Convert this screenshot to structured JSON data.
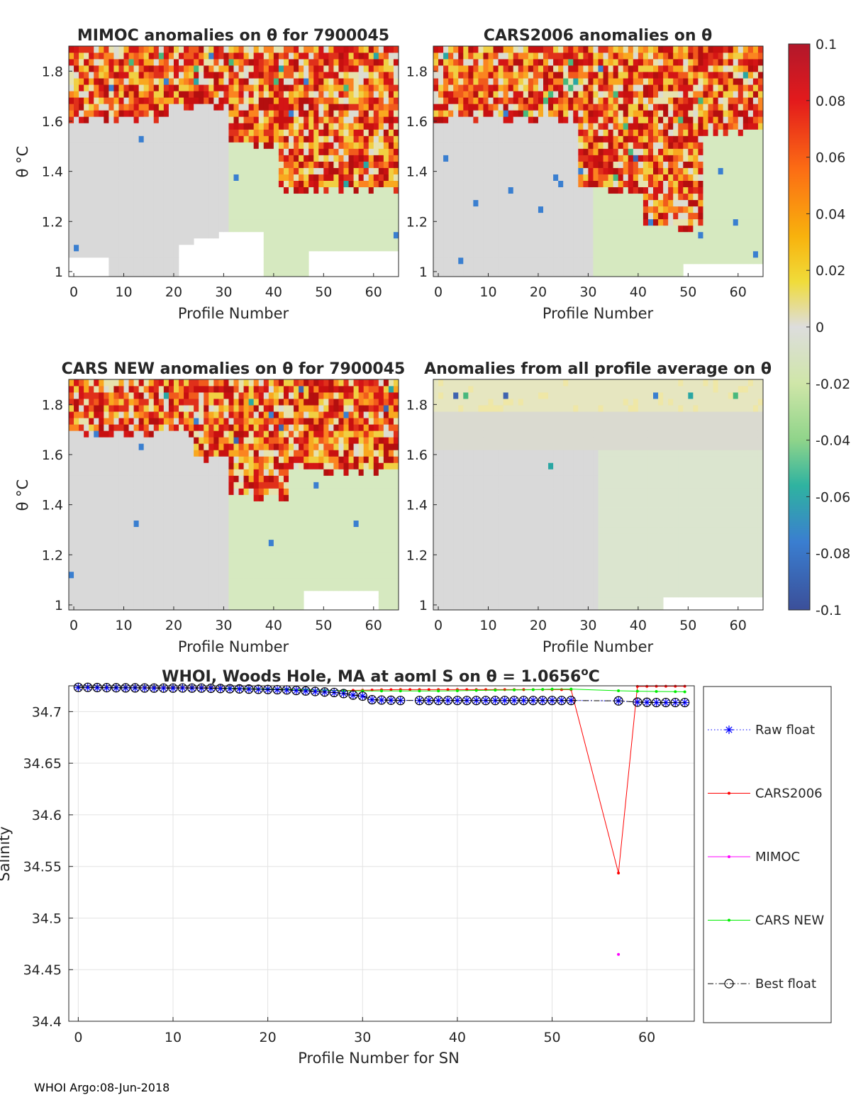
{
  "footer": "WHOI Argo:08-Jun-2018",
  "heatmaps": {
    "y_label": "θ °C",
    "x_label": "Profile Number",
    "panels": [
      {
        "title": "MIMOC anomalies on θ  for 7900045",
        "pattern": "mimoc"
      },
      {
        "title": "CARS2006 anomalies on θ",
        "pattern": "cars2006"
      },
      {
        "title": "CARS NEW anomalies on θ for 7900045",
        "pattern": "carsnew"
      },
      {
        "title": "Anomalies from all profile average on θ",
        "pattern": "average"
      }
    ]
  },
  "colorbar": {
    "range": [
      -0.1,
      0.1
    ],
    "tick_labels": [
      "0.1",
      "0.08",
      "0.06",
      "0.04",
      "0.02",
      "0",
      "-0.02",
      "-0.04",
      "-0.06",
      "-0.08",
      "-0.1"
    ],
    "tick_values": [
      0.1,
      0.08,
      0.06,
      0.04,
      0.02,
      0,
      -0.02,
      -0.04,
      -0.06,
      -0.08,
      -0.1
    ]
  },
  "chart_data": [
    {
      "type": "heatmap",
      "title": "MIMOC anomalies on θ  for 7900045",
      "xlabel": "Profile Number",
      "ylabel": "θ °C",
      "xlim": [
        -1,
        65
      ],
      "ylim": [
        0.98,
        1.9
      ],
      "xticks": [
        0,
        10,
        20,
        30,
        40,
        50,
        60
      ],
      "xtick_labels": [
        "0",
        "10",
        "20",
        "30",
        "40",
        "50",
        "60"
      ],
      "yticks": [
        1,
        1.2,
        1.4,
        1.6,
        1.8
      ],
      "ytick_labels": [
        "1",
        "1.2",
        "1.4",
        "1.6",
        "1.8"
      ],
      "color_range": [
        -0.1,
        0.1
      ]
    },
    {
      "type": "heatmap",
      "title": "CARS2006 anomalies on θ",
      "xlabel": "Profile Number",
      "ylabel": "θ °C",
      "xlim": [
        -1,
        65
      ],
      "ylim": [
        0.98,
        1.9
      ],
      "xticks": [
        0,
        10,
        20,
        30,
        40,
        50,
        60
      ],
      "xtick_labels": [
        "0",
        "10",
        "20",
        "30",
        "40",
        "50",
        "60"
      ],
      "yticks": [
        1,
        1.2,
        1.4,
        1.6,
        1.8
      ],
      "ytick_labels": [
        "1",
        "1.2",
        "1.4",
        "1.6",
        "1.8"
      ],
      "color_range": [
        -0.1,
        0.1
      ]
    },
    {
      "type": "heatmap",
      "title": "CARS NEW anomalies on θ for 7900045",
      "xlabel": "Profile Number",
      "ylabel": "θ °C",
      "xlim": [
        -1,
        65
      ],
      "ylim": [
        0.98,
        1.9
      ],
      "xticks": [
        0,
        10,
        20,
        30,
        40,
        50,
        60
      ],
      "xtick_labels": [
        "0",
        "10",
        "20",
        "30",
        "40",
        "50",
        "60"
      ],
      "yticks": [
        1,
        1.2,
        1.4,
        1.6,
        1.8
      ],
      "ytick_labels": [
        "1",
        "1.2",
        "1.4",
        "1.6",
        "1.8"
      ],
      "color_range": [
        -0.1,
        0.1
      ]
    },
    {
      "type": "heatmap",
      "title": "Anomalies from all profile average on θ",
      "xlabel": "Profile Number",
      "ylabel": "θ °C",
      "xlim": [
        -1,
        65
      ],
      "ylim": [
        0.98,
        1.9
      ],
      "xticks": [
        0,
        10,
        20,
        30,
        40,
        50,
        60
      ],
      "xtick_labels": [
        "0",
        "10",
        "20",
        "30",
        "40",
        "50",
        "60"
      ],
      "yticks": [
        1,
        1.2,
        1.4,
        1.6,
        1.8
      ],
      "ytick_labels": [
        "1",
        "1.2",
        "1.4",
        "1.6",
        "1.8"
      ],
      "color_range": [
        -0.1,
        0.1
      ]
    },
    {
      "type": "line",
      "title_prefix": "WHOI, Woods Hole, MA at aoml S on θ = 1.0656",
      "title_degree": "o",
      "title_suffix": "C",
      "xlabel": "Profile Number for SN",
      "ylabel": "Salinity",
      "xlim": [
        -1,
        65
      ],
      "ylim": [
        34.4,
        34.725
      ],
      "xticks": [
        0,
        10,
        20,
        30,
        40,
        50,
        60
      ],
      "xtick_labels": [
        "0",
        "10",
        "20",
        "30",
        "40",
        "50",
        "60"
      ],
      "yticks": [
        34.4,
        34.45,
        34.5,
        34.55,
        34.6,
        34.65,
        34.7
      ],
      "ytick_labels": [
        "34.4",
        "34.45",
        "34.5",
        "34.55",
        "34.6",
        "34.65",
        "34.7"
      ],
      "grid": true,
      "legend_position": "right",
      "series": [
        {
          "name": "Raw float",
          "color": "#0000ff",
          "marker": "star",
          "line": "dotted",
          "x": [
            0,
            1,
            2,
            3,
            4,
            5,
            6,
            7,
            8,
            9,
            10,
            11,
            12,
            13,
            14,
            15,
            16,
            17,
            18,
            19,
            20,
            21,
            22,
            23,
            24,
            25,
            26,
            27,
            28,
            29,
            30,
            31,
            32,
            33,
            34,
            36,
            37,
            38,
            39,
            40,
            41,
            42,
            43,
            44,
            45,
            46,
            47,
            48,
            49,
            50,
            51,
            52,
            57,
            59,
            60,
            61,
            62,
            63,
            64
          ],
          "y": [
            34.7235,
            34.7235,
            34.7233,
            34.7232,
            34.7231,
            34.723,
            34.723,
            34.7229,
            34.7228,
            34.7228,
            34.7228,
            34.7229,
            34.7228,
            34.7228,
            34.7226,
            34.7224,
            34.7222,
            34.722,
            34.7218,
            34.7216,
            34.7214,
            34.7212,
            34.721,
            34.7205,
            34.72,
            34.7195,
            34.719,
            34.7185,
            34.7175,
            34.716,
            34.715,
            34.7115,
            34.7112,
            34.711,
            34.7108,
            34.7108,
            34.7108,
            34.7108,
            34.7108,
            34.7108,
            34.7108,
            34.7108,
            34.7108,
            34.7108,
            34.7108,
            34.7108,
            34.7108,
            34.7108,
            34.7108,
            34.7108,
            34.7108,
            34.7108,
            34.7104,
            34.7092,
            34.709,
            34.7088,
            34.7088,
            34.7088,
            34.7088
          ]
        },
        {
          "name": "CARS2006",
          "color": "#ff0000",
          "marker": "dot",
          "line": "solid",
          "x": [
            0,
            2,
            4,
            6,
            8,
            10,
            12,
            14,
            16,
            18,
            20,
            22,
            24,
            26,
            28,
            29,
            30,
            31,
            32,
            33,
            34,
            35,
            36,
            37,
            38,
            39,
            40,
            41,
            42,
            43,
            44,
            45,
            46,
            47,
            48,
            49,
            50,
            51,
            52,
            57,
            59,
            60,
            61,
            62,
            63,
            64
          ],
          "y": [
            34.7232,
            34.7232,
            34.7231,
            34.7231,
            34.7231,
            34.7231,
            34.7231,
            34.7231,
            34.7226,
            34.7222,
            34.7219,
            34.7217,
            34.7211,
            34.7206,
            34.7204,
            34.7206,
            34.7207,
            34.7209,
            34.7211,
            34.7212,
            34.7213,
            34.7213,
            34.7213,
            34.7213,
            34.7213,
            34.7213,
            34.7213,
            34.7213,
            34.7213,
            34.7213,
            34.7213,
            34.7213,
            34.7213,
            34.7213,
            34.7213,
            34.7213,
            34.7213,
            34.7213,
            34.7213,
            34.5436,
            34.7244,
            34.7245,
            34.7246,
            34.7246,
            34.7246,
            34.7246
          ]
        },
        {
          "name": "MIMOC",
          "color": "#ff00ff",
          "marker": "dot",
          "line": "solid",
          "x": [
            57
          ],
          "y": [
            34.4648
          ]
        },
        {
          "name": "CARS NEW",
          "color": "#00ee00",
          "marker": "dot",
          "line": "solid",
          "x": [
            0,
            2,
            4,
            6,
            8,
            10,
            12,
            14,
            16,
            18,
            20,
            22,
            24,
            26,
            28,
            30,
            32,
            34,
            36,
            38,
            40,
            42,
            44,
            46,
            48,
            49,
            50,
            52,
            57,
            59,
            61,
            63,
            64
          ],
          "y": [
            34.7234,
            34.7233,
            34.7232,
            34.723,
            34.7229,
            34.7229,
            34.7229,
            34.7228,
            34.7226,
            34.7222,
            34.7219,
            34.7216,
            34.7212,
            34.7206,
            34.7202,
            34.72,
            34.72,
            34.72,
            34.72,
            34.72,
            34.7202,
            34.7205,
            34.7208,
            34.721,
            34.7212,
            34.7215,
            34.7217,
            34.7218,
            34.7202,
            34.7198,
            34.7195,
            34.7193,
            34.7192
          ]
        },
        {
          "name": "Best float",
          "color": "#000000",
          "marker": "circle",
          "line": "dashdot",
          "x": [
            0,
            1,
            2,
            3,
            4,
            5,
            6,
            7,
            8,
            9,
            10,
            11,
            12,
            13,
            14,
            15,
            16,
            17,
            18,
            19,
            20,
            21,
            22,
            23,
            24,
            25,
            26,
            27,
            28,
            29,
            30,
            31,
            32,
            33,
            34,
            36,
            37,
            38,
            39,
            40,
            41,
            42,
            43,
            44,
            45,
            46,
            47,
            48,
            49,
            50,
            51,
            52,
            57,
            59,
            60,
            61,
            62,
            63,
            64
          ],
          "y": [
            34.7235,
            34.7235,
            34.7233,
            34.7232,
            34.7231,
            34.723,
            34.723,
            34.7229,
            34.7228,
            34.7228,
            34.7228,
            34.7229,
            34.7228,
            34.7228,
            34.7226,
            34.7224,
            34.7222,
            34.722,
            34.7218,
            34.7216,
            34.7214,
            34.7212,
            34.721,
            34.7205,
            34.72,
            34.7195,
            34.719,
            34.7185,
            34.7175,
            34.716,
            34.715,
            34.7115,
            34.7112,
            34.711,
            34.7108,
            34.7108,
            34.7108,
            34.7108,
            34.7108,
            34.7108,
            34.7108,
            34.7108,
            34.7108,
            34.7108,
            34.7108,
            34.7108,
            34.7108,
            34.7108,
            34.7108,
            34.7108,
            34.7108,
            34.7108,
            34.7104,
            34.7092,
            34.709,
            34.7088,
            34.7088,
            34.7088,
            34.7088
          ]
        }
      ]
    }
  ]
}
